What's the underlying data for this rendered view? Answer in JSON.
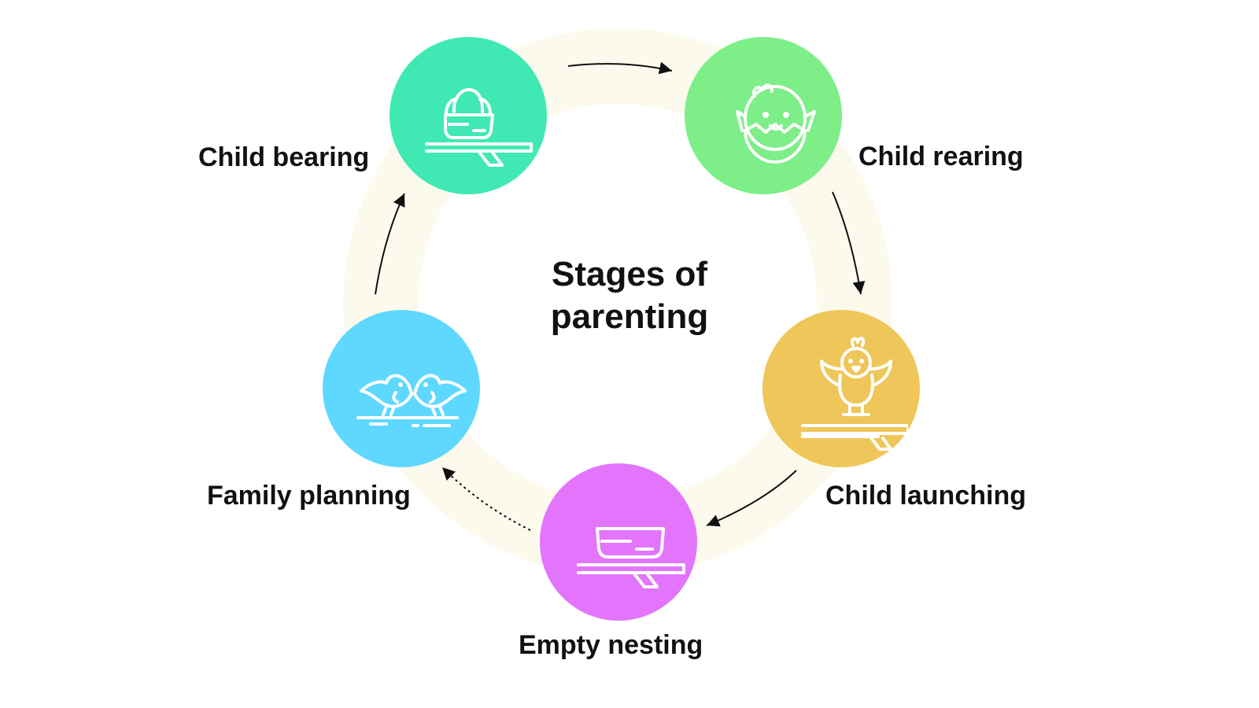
{
  "title": {
    "line1": "Stages of",
    "line2": "parenting"
  },
  "stages": [
    {
      "label": "Child bearing",
      "color": "#40E9B4",
      "icon": "nest-with-egg-icon"
    },
    {
      "label": "Child rearing",
      "color": "#7DEE88",
      "icon": "hatching-chick-icon"
    },
    {
      "label": "Child launching",
      "color": "#EFC65A",
      "icon": "chick-on-branch-icon"
    },
    {
      "label": "Empty nesting",
      "color": "#E275FB",
      "icon": "empty-nest-icon"
    },
    {
      "label": "Family planning",
      "color": "#5FD8FF",
      "icon": "two-birds-icon"
    }
  ],
  "colors": {
    "ring": "#FCFAEC",
    "text": "#111111",
    "arrow": "#111111"
  }
}
